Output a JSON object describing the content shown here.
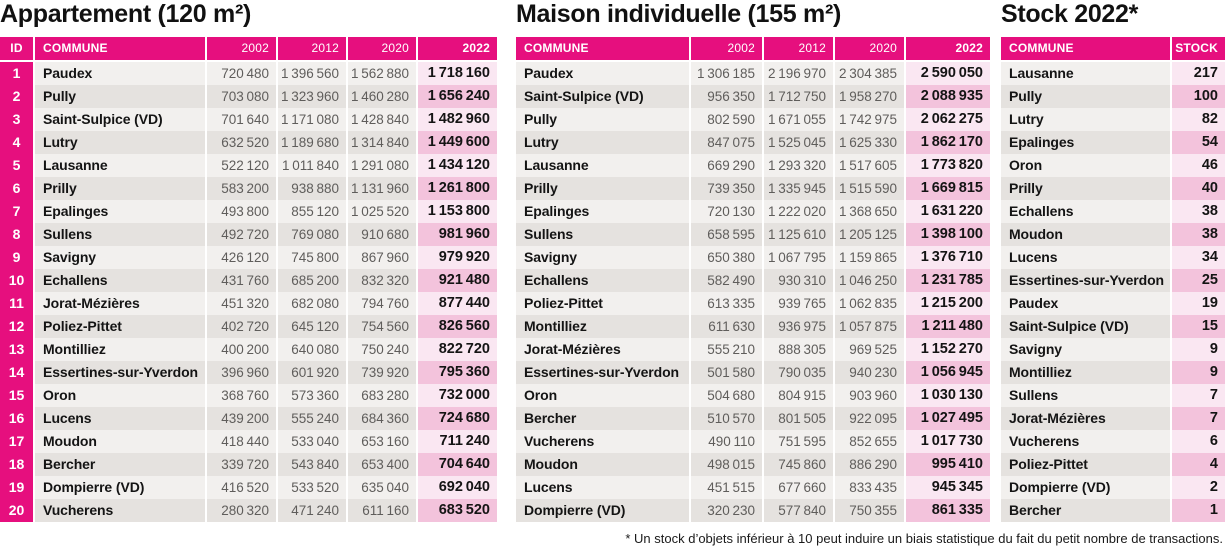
{
  "colors": {
    "accent": "#e60f7e",
    "row_light": "#f2f0ee",
    "row_dark": "#e5e2df",
    "final_light": "#fae7f2",
    "final_dark": "#f3c3dc",
    "value_text": "#5f5d5b"
  },
  "footnote": "* Un stock d’objets inférieur à 10 peut induire un biais statistique du fait du petit nombre de transactions.",
  "chart_data": [
    {
      "type": "table",
      "title": "Appartement (120 m²)",
      "columns": [
        "ID",
        "COMMUNE",
        "2002",
        "2012",
        "2020",
        "2022"
      ],
      "rows": [
        [
          1,
          "Paudex",
          720480,
          1396560,
          1562880,
          1718160
        ],
        [
          2,
          "Pully",
          703080,
          1323960,
          1460280,
          1656240
        ],
        [
          3,
          "Saint-Sulpice (VD)",
          701640,
          1171080,
          1428840,
          1482960
        ],
        [
          4,
          "Lutry",
          632520,
          1189680,
          1314840,
          1449600
        ],
        [
          5,
          "Lausanne",
          522120,
          1011840,
          1291080,
          1434120
        ],
        [
          6,
          "Prilly",
          583200,
          938880,
          1131960,
          1261800
        ],
        [
          7,
          "Epalinges",
          493800,
          855120,
          1025520,
          1153800
        ],
        [
          8,
          "Sullens",
          492720,
          769080,
          910680,
          981960
        ],
        [
          9,
          "Savigny",
          426120,
          745800,
          867960,
          979920
        ],
        [
          10,
          "Echallens",
          431760,
          685200,
          832320,
          921480
        ],
        [
          11,
          "Jorat-Mézières",
          451320,
          682080,
          794760,
          877440
        ],
        [
          12,
          "Poliez-Pittet",
          402720,
          645120,
          754560,
          826560
        ],
        [
          13,
          "Montilliez",
          400200,
          640080,
          750240,
          822720
        ],
        [
          14,
          "Essertines-sur-Yverdon",
          396960,
          601920,
          739920,
          795360
        ],
        [
          15,
          "Oron",
          368760,
          573360,
          683280,
          732000
        ],
        [
          16,
          "Lucens",
          439200,
          555240,
          684360,
          724680
        ],
        [
          17,
          "Moudon",
          418440,
          533040,
          653160,
          711240
        ],
        [
          18,
          "Bercher",
          339720,
          543840,
          653400,
          704640
        ],
        [
          19,
          "Dompierre (VD)",
          416520,
          533520,
          635040,
          692040
        ],
        [
          20,
          "Vucherens",
          280320,
          471240,
          611160,
          683520
        ]
      ]
    },
    {
      "type": "table",
      "title": "Maison individuelle (155 m²)",
      "columns": [
        "COMMUNE",
        "2002",
        "2012",
        "2020",
        "2022"
      ],
      "rows": [
        [
          "Paudex",
          1306185,
          2196970,
          2304385,
          2590050
        ],
        [
          "Saint-Sulpice (VD)",
          956350,
          1712750,
          1958270,
          2088935
        ],
        [
          "Pully",
          802590,
          1671055,
          1742975,
          2062275
        ],
        [
          "Lutry",
          847075,
          1525045,
          1625330,
          1862170
        ],
        [
          "Lausanne",
          669290,
          1293320,
          1517605,
          1773820
        ],
        [
          "Prilly",
          739350,
          1335945,
          1515590,
          1669815
        ],
        [
          "Epalinges",
          720130,
          1222020,
          1368650,
          1631220
        ],
        [
          "Sullens",
          658595,
          1125610,
          1205125,
          1398100
        ],
        [
          "Savigny",
          650380,
          1067795,
          1159865,
          1376710
        ],
        [
          "Echallens",
          582490,
          930310,
          1046250,
          1231785
        ],
        [
          "Poliez-Pittet",
          613335,
          939765,
          1062835,
          1215200
        ],
        [
          "Montilliez",
          611630,
          936975,
          1057875,
          1211480
        ],
        [
          "Jorat-Mézières",
          555210,
          888305,
          969525,
          1152270
        ],
        [
          "Essertines-sur-Yverdon",
          501580,
          790035,
          940230,
          1056945
        ],
        [
          "Oron",
          504680,
          804915,
          903960,
          1030130
        ],
        [
          "Bercher",
          510570,
          801505,
          922095,
          1027495
        ],
        [
          "Vucherens",
          490110,
          751595,
          852655,
          1017730
        ],
        [
          "Moudon",
          498015,
          745860,
          886290,
          995410
        ],
        [
          "Lucens",
          451515,
          677660,
          833435,
          945345
        ],
        [
          "Dompierre (VD)",
          320230,
          577840,
          750355,
          861335
        ]
      ]
    },
    {
      "type": "table",
      "title": "Stock 2022*",
      "columns": [
        "COMMUNE",
        "STOCK"
      ],
      "rows": [
        [
          "Lausanne",
          217
        ],
        [
          "Pully",
          100
        ],
        [
          "Lutry",
          82
        ],
        [
          "Epalinges",
          54
        ],
        [
          "Oron",
          46
        ],
        [
          "Prilly",
          40
        ],
        [
          "Echallens",
          38
        ],
        [
          "Moudon",
          38
        ],
        [
          "Lucens",
          34
        ],
        [
          "Essertines-sur-Yverdon",
          25
        ],
        [
          "Paudex",
          19
        ],
        [
          "Saint-Sulpice (VD)",
          15
        ],
        [
          "Savigny",
          9
        ],
        [
          "Montilliez",
          9
        ],
        [
          "Sullens",
          7
        ],
        [
          "Jorat-Mézières",
          7
        ],
        [
          "Vucherens",
          6
        ],
        [
          "Poliez-Pittet",
          4
        ],
        [
          "Dompierre (VD)",
          2
        ],
        [
          "Bercher",
          1
        ]
      ]
    }
  ]
}
